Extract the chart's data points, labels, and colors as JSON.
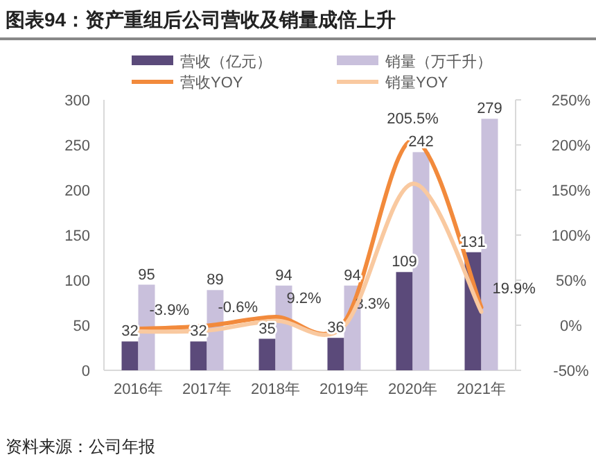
{
  "chart_data": {
    "type": "bar",
    "title": "图表94：资产重组后公司营收及销量成倍上升",
    "categories": [
      "2016年",
      "2017年",
      "2018年",
      "2019年",
      "2020年",
      "2021年"
    ],
    "series": [
      {
        "name": "营收（亿元）",
        "color": "#5b4a7a",
        "values": [
          32,
          32,
          35,
          36,
          109,
          131
        ],
        "value_labels": [
          "32",
          "32",
          "35",
          "36",
          "109",
          "131"
        ]
      },
      {
        "name": "销量（万千升）",
        "color": "#c9c0dc",
        "values": [
          95,
          89,
          94,
          94,
          242,
          279
        ],
        "value_labels": [
          "95",
          "89",
          "94",
          "94",
          "242",
          "279"
        ]
      },
      {
        "name": "营收YOY",
        "type": "line",
        "axis": "y2",
        "color": "#f28a3c",
        "values": [
          -3.9,
          -0.6,
          9.2,
          3.3,
          205.5,
          19.9
        ],
        "value_labels": [
          "-3.9%",
          "-0.6%",
          "9.2%",
          "3.3%",
          "205.5%",
          "19.9%"
        ]
      },
      {
        "name": "销量YOY",
        "type": "line",
        "axis": "y2",
        "color": "#f9c9a0",
        "values": [
          -7,
          -6,
          5,
          -1,
          157,
          15
        ]
      }
    ],
    "ylim": [
      0,
      300
    ],
    "yticks": [
      0,
      50,
      100,
      150,
      200,
      250,
      300
    ],
    "y2lim": [
      -50,
      250
    ],
    "y2ticks": [
      {
        "value": -50,
        "label": "-50%"
      },
      {
        "value": 0,
        "label": "0%"
      },
      {
        "value": 50,
        "label": "50%"
      },
      {
        "value": 100,
        "label": "100%"
      },
      {
        "value": 150,
        "label": "150%"
      },
      {
        "value": 200,
        "label": "200%"
      },
      {
        "value": 250,
        "label": "250%"
      }
    ],
    "legend": "top",
    "grid": false,
    "annotations": [
      "资料来源：公司年报"
    ]
  }
}
